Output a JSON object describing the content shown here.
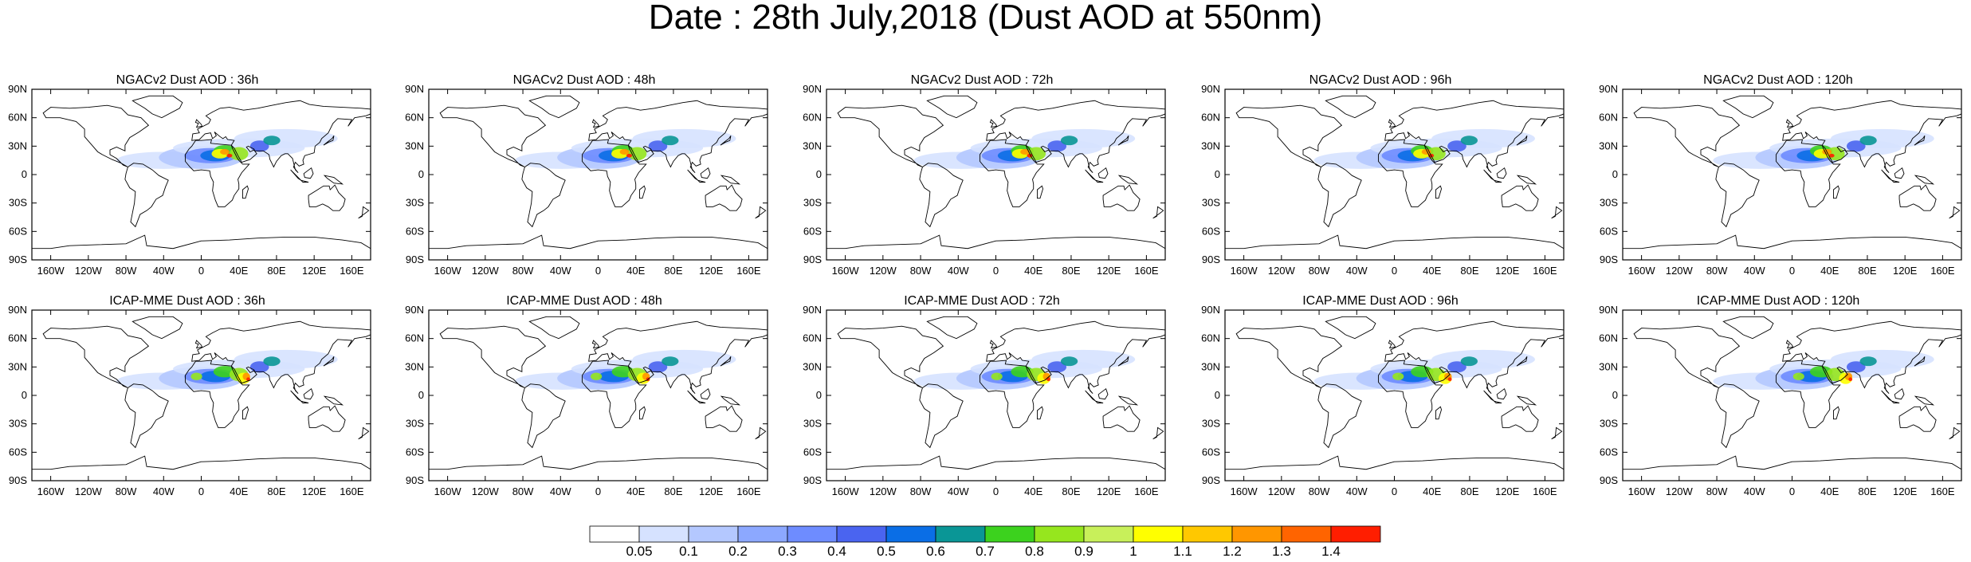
{
  "title": "Date : 28th July,2018 (Dust AOD at 550nm)",
  "map_grid": {
    "lat_labels": [
      "90N",
      "60N",
      "30N",
      "0",
      "30S",
      "60S",
      "90S"
    ],
    "lon_labels": [
      "160W",
      "120W",
      "80W",
      "40W",
      "0",
      "40E",
      "80E",
      "120E",
      "160E"
    ],
    "lon_values": [
      -160,
      -120,
      -80,
      -40,
      0,
      40,
      80,
      120,
      160
    ],
    "lat_values": [
      90,
      60,
      30,
      0,
      -30,
      -60,
      -90
    ]
  },
  "panels": [
    {
      "title": "NGACv2 Dust AOD : 36h",
      "model": "NGACv2",
      "lead": "36h"
    },
    {
      "title": "NGACv2 Dust AOD : 48h",
      "model": "NGACv2",
      "lead": "48h"
    },
    {
      "title": "NGACv2 Dust AOD : 72h",
      "model": "NGACv2",
      "lead": "72h"
    },
    {
      "title": "NGACv2 Dust AOD : 96h",
      "model": "NGACv2",
      "lead": "96h"
    },
    {
      "title": "NGACv2 Dust AOD : 120h",
      "model": "NGACv2",
      "lead": "120h"
    },
    {
      "title": "ICAP-MME Dust AOD : 36h",
      "model": "ICAP-MME",
      "lead": "36h"
    },
    {
      "title": "ICAP-MME Dust AOD : 48h",
      "model": "ICAP-MME",
      "lead": "48h"
    },
    {
      "title": "ICAP-MME Dust AOD : 72h",
      "model": "ICAP-MME",
      "lead": "72h"
    },
    {
      "title": "ICAP-MME Dust AOD : 96h",
      "model": "ICAP-MME",
      "lead": "96h"
    },
    {
      "title": "ICAP-MME Dust AOD : 120h",
      "model": "ICAP-MME",
      "lead": "120h"
    }
  ],
  "colorbar": {
    "labels": [
      "0.05",
      "0.1",
      "0.2",
      "0.3",
      "0.4",
      "0.5",
      "0.6",
      "0.7",
      "0.8",
      "0.9",
      "1",
      "1.1",
      "1.2",
      "1.3",
      "1.4"
    ],
    "colors": [
      "#ffffff",
      "#d6e2ff",
      "#b4c8ff",
      "#8ca8ff",
      "#6e8cff",
      "#4a64f0",
      "#0a6ee6",
      "#0a9696",
      "#3cd21e",
      "#96e61e",
      "#c8f05a",
      "#ffff00",
      "#ffc800",
      "#ff9600",
      "#ff6400",
      "#ff1e00"
    ]
  }
}
